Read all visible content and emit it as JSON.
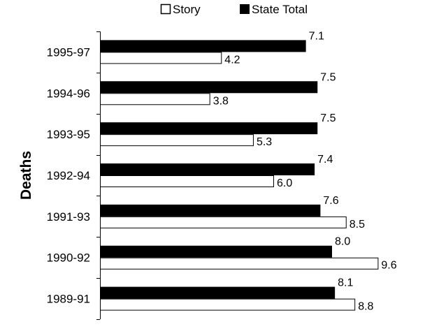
{
  "chart_data": {
    "type": "bar",
    "orientation": "horizontal",
    "categories": [
      "1995-97",
      "1994-96",
      "1993-95",
      "1992-94",
      "1991-93",
      "1990-92",
      "1989-91"
    ],
    "series": [
      {
        "name": "Story",
        "values": [
          4.2,
          3.8,
          5.3,
          6.0,
          8.5,
          9.6,
          8.8
        ],
        "color": "#ffffff",
        "stroke": "#000000"
      },
      {
        "name": "State Total",
        "values": [
          7.1,
          7.5,
          7.5,
          7.4,
          7.6,
          8.0,
          8.1
        ],
        "color": "#000000",
        "stroke": "#000000"
      }
    ],
    "value_labels": {
      "Story": [
        "4.2",
        "3.8",
        "5.3",
        "6.0",
        "8.5",
        "9.6",
        "8.8"
      ],
      "State Total": [
        "7.1",
        "7.5",
        "7.5",
        "7.4",
        "7.6",
        "8.0",
        "8.1"
      ]
    },
    "ylabel": "Deaths",
    "xlabel": "",
    "xlim": [
      0,
      10
    ],
    "grid": false,
    "legend_position": "top-center"
  }
}
